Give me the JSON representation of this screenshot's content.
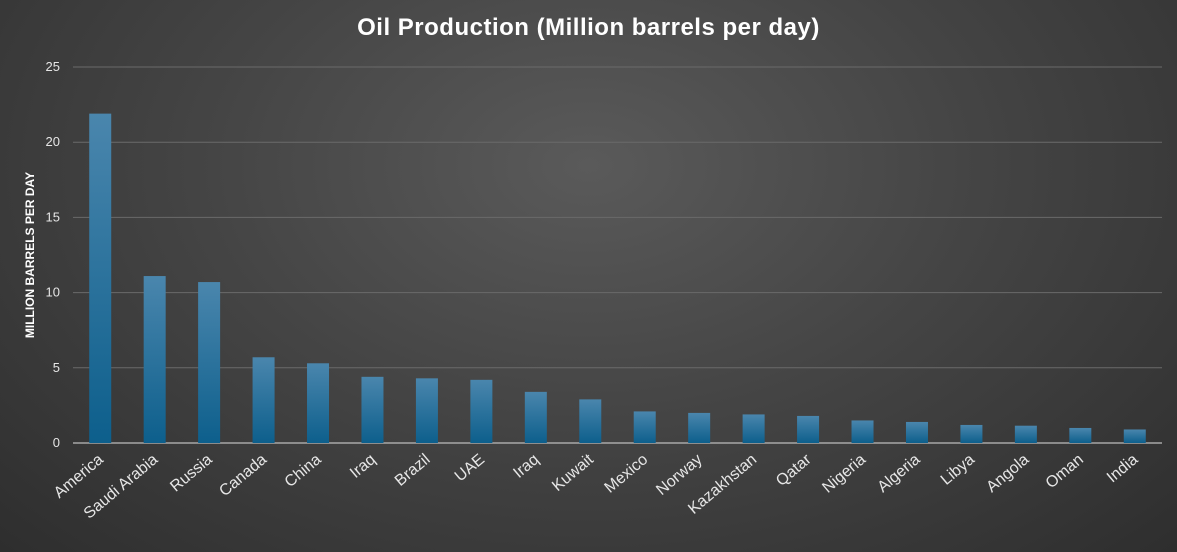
{
  "chart_data": {
    "type": "bar",
    "title": "Oil Production (Million barrels per day)",
    "xlabel": "",
    "ylabel": "MILLION BARRELS PER DAY",
    "ylim": [
      0,
      25
    ],
    "yticks": [
      0,
      5,
      10,
      15,
      20,
      25
    ],
    "grid": true,
    "legend": "none",
    "bar_color": "#1f6f9e",
    "categories": [
      "America",
      "Saudi Arabia",
      "Russia",
      "Canada",
      "China",
      "Iraq",
      "Brazil",
      "UAE",
      "Iraq",
      "Kuwait",
      "Mexico",
      "Norway",
      "Kazakhstan",
      "Qatar",
      "Nigeria",
      "Algeria",
      "Libya",
      "Angola",
      "Oman",
      "India"
    ],
    "values": [
      21.9,
      11.1,
      10.7,
      5.7,
      5.3,
      4.4,
      4.3,
      4.2,
      3.4,
      2.9,
      2.1,
      2.0,
      1.9,
      1.8,
      1.5,
      1.4,
      1.2,
      1.15,
      1.0,
      0.9
    ]
  }
}
